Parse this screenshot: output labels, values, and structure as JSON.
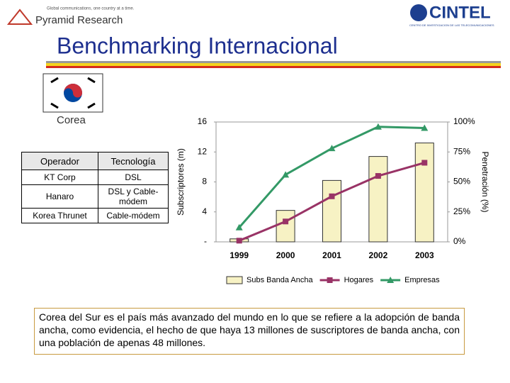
{
  "header": {
    "tagline": "Global communications, one country at a time.",
    "brand": "Pyramid Research",
    "logo": "CINTEL",
    "logo_subtitle": "CENTRO DE INVESTIGACION DE LAS TELECOMUNICACIONES",
    "title": "Benchmarking Internacional"
  },
  "country": "Corea",
  "table": {
    "columns": [
      "Operador",
      "Tecnología"
    ],
    "rows": [
      [
        "KT Corp",
        "DSL"
      ],
      [
        "Hanaro",
        "DSL y Cable-módem"
      ],
      [
        "Korea Thrunet",
        "Cable-módem"
      ]
    ]
  },
  "chart_data": {
    "type": "bar",
    "y_label": "Subscriptores (m)",
    "y2_label": "Penetración (%)",
    "categories": [
      "1999",
      "2000",
      "2001",
      "2002",
      "2003"
    ],
    "series": [
      {
        "name": "Subs Banda Ancha",
        "type": "bar",
        "color": "#f7f2c4",
        "values": [
          0.4,
          4.2,
          8.2,
          11.4,
          13.2
        ]
      },
      {
        "name": "Hogares",
        "type": "line",
        "marker": "square",
        "axis": "y2",
        "color": "#993366",
        "values": [
          1,
          17,
          38,
          55,
          66
        ]
      },
      {
        "name": "Empresas",
        "type": "line",
        "marker": "triangle",
        "axis": "y2",
        "color": "#339966",
        "values": [
          12,
          56,
          78,
          96,
          95
        ]
      }
    ],
    "ylim": [
      0,
      16
    ],
    "yticks": [
      {
        "value": 0,
        "label": "-"
      },
      4,
      8,
      12,
      16
    ],
    "y2lim": [
      0,
      100
    ],
    "y2ticks": [
      {
        "value": 0,
        "label": "0%"
      },
      {
        "value": 25,
        "label": "25%"
      },
      {
        "value": 50,
        "label": "50%"
      },
      {
        "value": 75,
        "label": "75%"
      },
      {
        "value": 100,
        "label": "100%"
      }
    ],
    "grid": false,
    "legend": "bottom"
  },
  "caption": "Corea del Sur es el país más avanzado del mundo en lo que se refiere a la adopción de banda ancha, como evidencia, el hecho de que haya 13 millones de suscriptores de banda ancha, con una población de apenas 48 millones."
}
